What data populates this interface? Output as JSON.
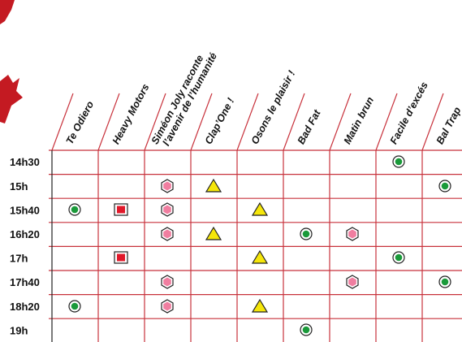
{
  "columns": [
    "Te Odiero",
    "Heavy Motors",
    [
      "Siméon Joly raconte",
      "l’avenir de l’humanité"
    ],
    "Clap’One !",
    "Osons le plaisir !",
    "Bad Fat",
    "Matin brun",
    "Facile d’excés",
    "Bal Trap"
  ],
  "rows": [
    "14h30",
    "15h",
    "15h40",
    "16h20",
    "17h",
    "17h40",
    "18h20",
    "19h"
  ]
}
